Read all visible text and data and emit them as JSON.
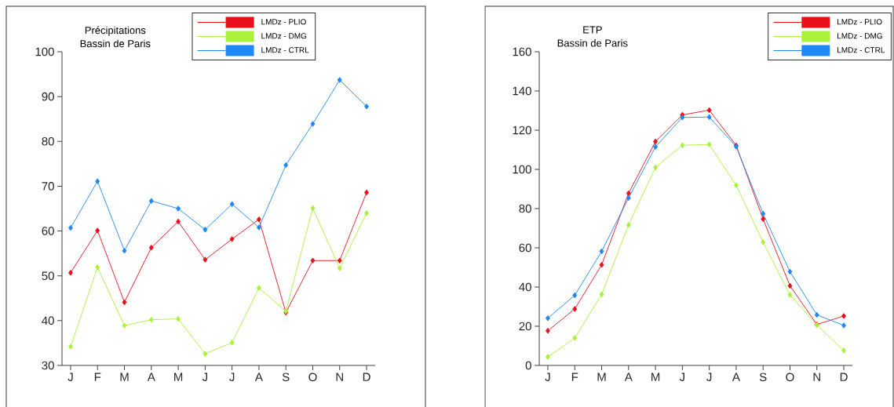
{
  "chart_data": [
    {
      "type": "line",
      "title": "Précipitations",
      "subtitle": "Bassin de Paris",
      "categories": [
        "J",
        "F",
        "M",
        "A",
        "M",
        "J",
        "J",
        "A",
        "S",
        "O",
        "N",
        "D"
      ],
      "series": [
        {
          "name": "LMDz - PLIO",
          "color": "#e8101a",
          "values": [
            50.7,
            60.1,
            44.1,
            56.3,
            62.1,
            53.6,
            58.2,
            62.6,
            41.8,
            53.4,
            53.4,
            68.6
          ]
        },
        {
          "name": "LMDz - DMG",
          "color": "#aaf23a",
          "values": [
            34.2,
            51.9,
            38.9,
            40.2,
            40.4,
            32.6,
            35.1,
            47.3,
            42.1,
            65.1,
            51.7,
            64.0
          ]
        },
        {
          "name": "LMDz - CTRL",
          "color": "#1e88f5",
          "values": [
            60.7,
            71.1,
            55.6,
            66.7,
            65.0,
            60.3,
            66.0,
            60.8,
            74.7,
            83.9,
            93.7,
            87.8
          ]
        }
      ],
      "ylim": [
        30,
        100
      ],
      "yticks": [
        30,
        40,
        50,
        60,
        70,
        80,
        90,
        100
      ],
      "legend": "top right",
      "marker": "diamond",
      "line_style": "solid"
    },
    {
      "type": "line",
      "title": "ETP",
      "subtitle": "Bassin de Paris",
      "categories": [
        "J",
        "F",
        "M",
        "A",
        "M",
        "J",
        "J",
        "A",
        "S",
        "O",
        "N",
        "D"
      ],
      "series": [
        {
          "name": "LMDz - PLIO",
          "color": "#e8101a",
          "values": [
            17.7,
            28.8,
            51.3,
            87.8,
            114.2,
            127.8,
            130.2,
            112.2,
            74.7,
            40.6,
            20.9,
            25.2
          ]
        },
        {
          "name": "LMDz - DMG",
          "color": "#aaf23a",
          "values": [
            4.3,
            14.0,
            36.2,
            71.7,
            101.0,
            112.3,
            112.7,
            91.9,
            62.9,
            36.0,
            20.7,
            7.6
          ]
        },
        {
          "name": "LMDz - CTRL",
          "color": "#1e88f5",
          "values": [
            24.1,
            35.8,
            58.2,
            85.4,
            111.5,
            126.5,
            126.7,
            111.6,
            77.4,
            47.8,
            25.8,
            20.4
          ]
        }
      ],
      "ylim": [
        0,
        160
      ],
      "yticks": [
        0,
        20,
        40,
        60,
        80,
        100,
        120,
        140,
        160
      ],
      "legend": "top right",
      "marker": "diamond",
      "line_style": "solid"
    }
  ]
}
